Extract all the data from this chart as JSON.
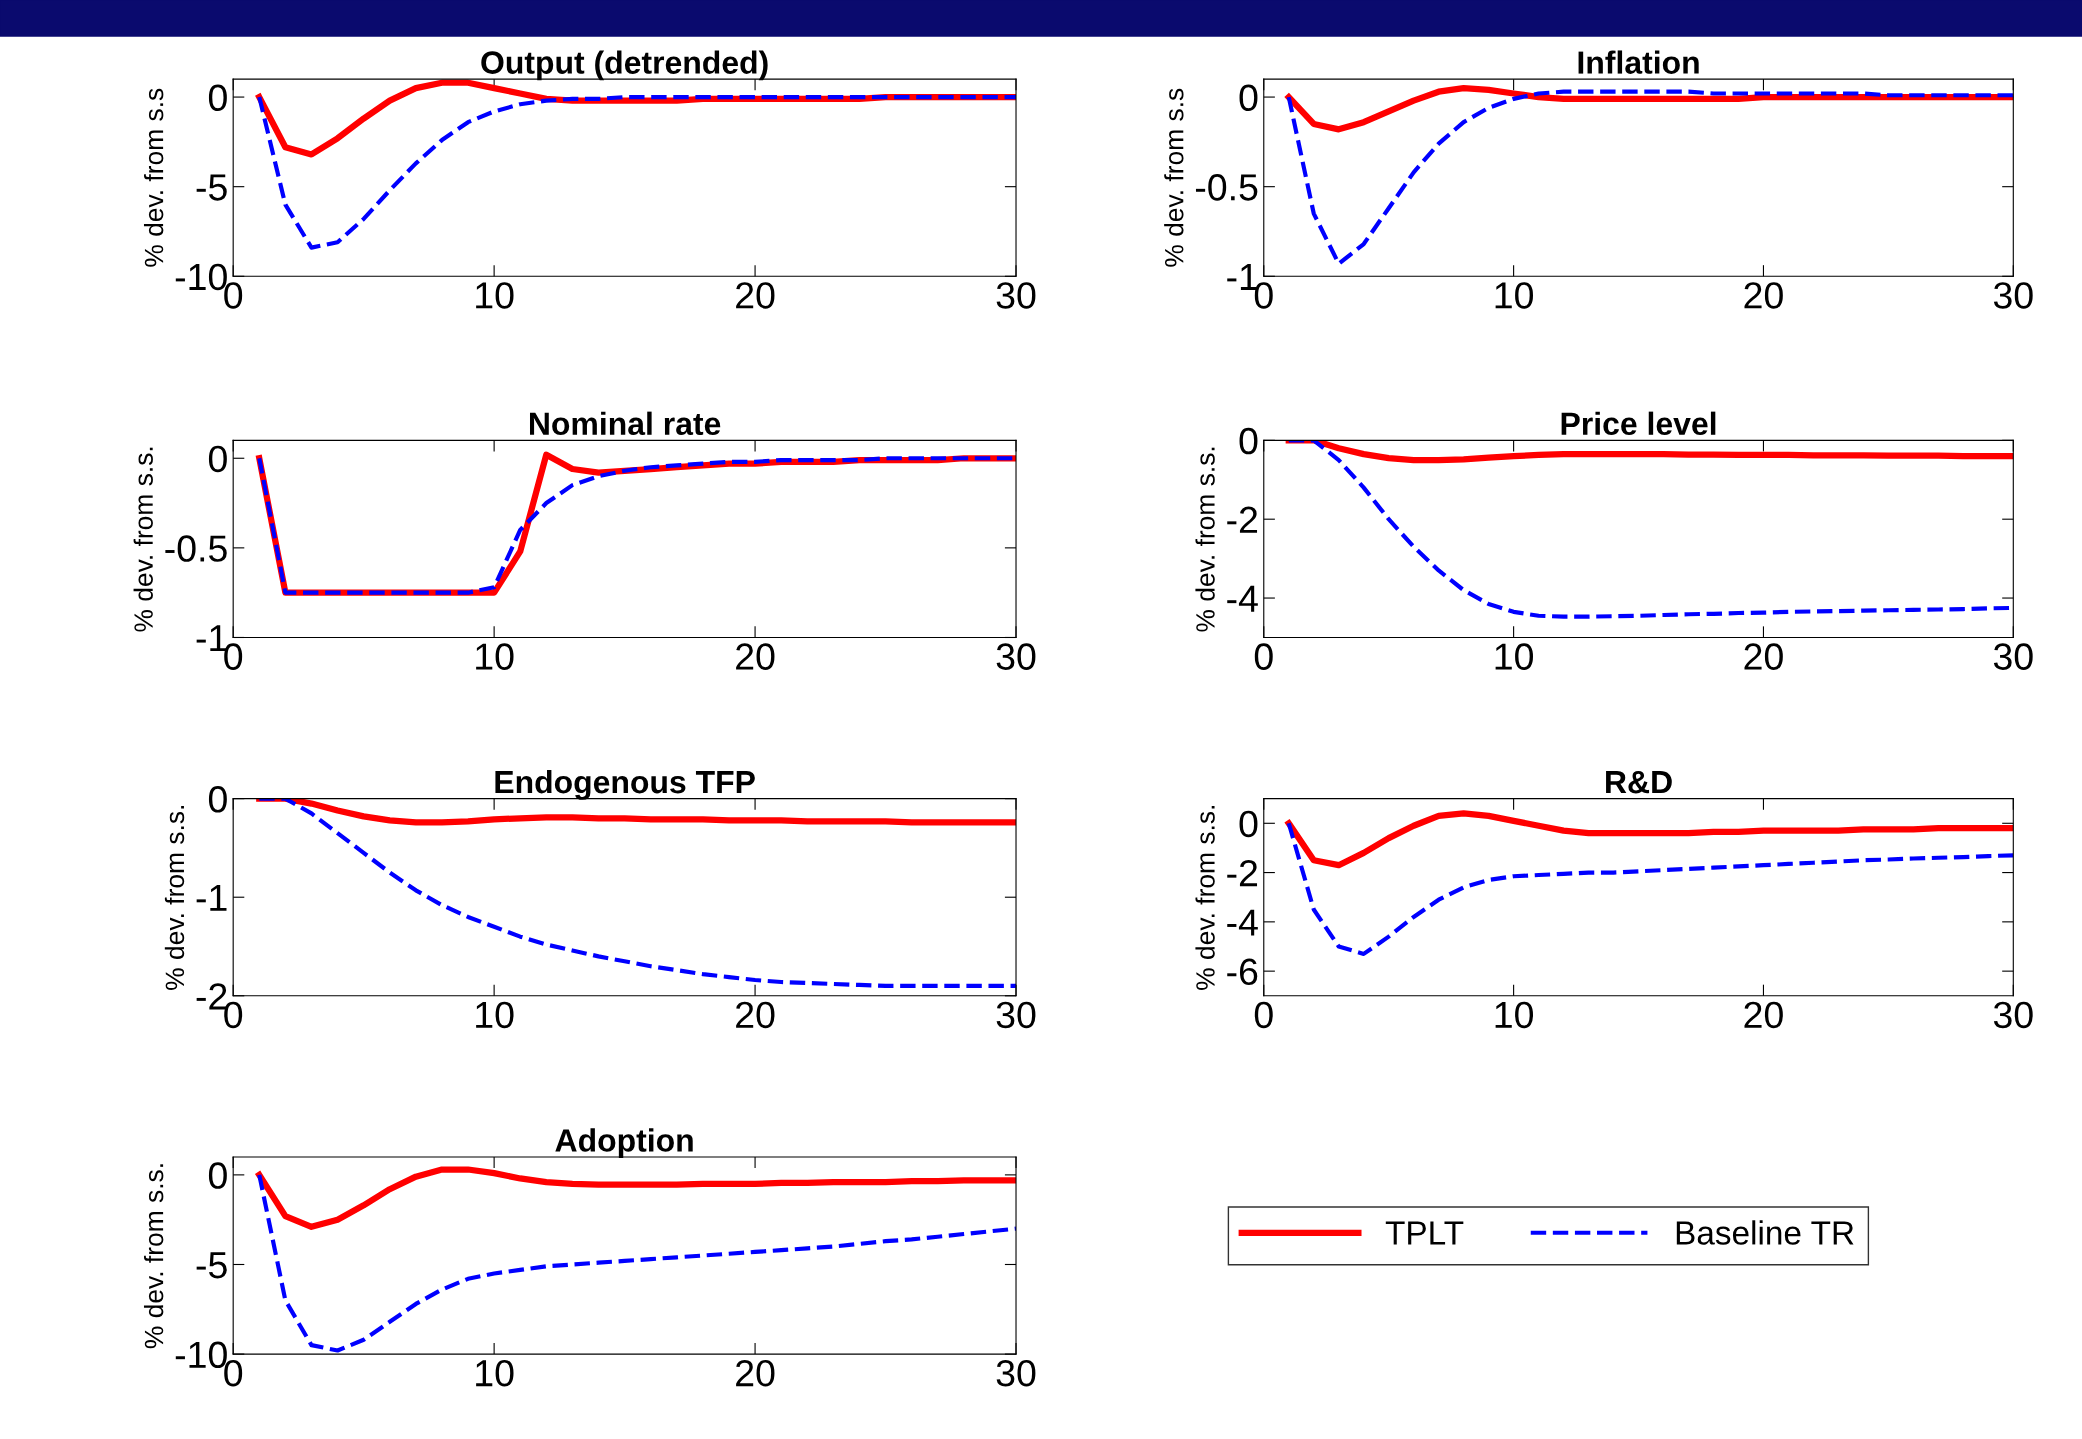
{
  "chart_data": [
    {
      "type": "line",
      "title": "Output (detrended)",
      "ylabel": "% dev. from s.s",
      "xlim": [
        0,
        30
      ],
      "xticks": [
        0,
        10,
        20,
        30
      ],
      "ylim": [
        -10,
        1
      ],
      "yticks": [
        -10,
        -5,
        0
      ],
      "x": [
        1,
        2,
        3,
        4,
        5,
        6,
        7,
        8,
        9,
        10,
        11,
        12,
        13,
        14,
        15,
        16,
        17,
        18,
        19,
        20,
        21,
        22,
        23,
        24,
        25,
        26,
        27,
        28,
        29,
        30
      ],
      "series": [
        {
          "color": "#ff0000",
          "line_style": "solid",
          "values": [
            0,
            -2.8,
            -3.2,
            -2.3,
            -1.2,
            -0.2,
            0.5,
            0.8,
            0.8,
            0.5,
            0.2,
            -0.1,
            -0.2,
            -0.2,
            -0.2,
            -0.2,
            -0.2,
            -0.1,
            -0.1,
            -0.1,
            -0.1,
            -0.1,
            -0.1,
            -0.1,
            0,
            0,
            0,
            0,
            0,
            0
          ]
        },
        {
          "color": "#0000ff",
          "line_style": "dashed",
          "values": [
            0,
            -6,
            -8.4,
            -8.1,
            -6.8,
            -5.2,
            -3.7,
            -2.4,
            -1.4,
            -0.8,
            -0.4,
            -0.2,
            -0.1,
            -0.1,
            0,
            0,
            0,
            0,
            0,
            0,
            0,
            0,
            0,
            0,
            0,
            0,
            0,
            0,
            0,
            0
          ]
        }
      ]
    },
    {
      "type": "line",
      "title": "Inflation",
      "ylabel": "% dev. from s.s",
      "xlim": [
        0,
        30
      ],
      "xticks": [
        0,
        10,
        20,
        30
      ],
      "ylim": [
        -1,
        0.1
      ],
      "yticks": [
        -1,
        -0.5,
        0
      ],
      "x": [
        1,
        2,
        3,
        4,
        5,
        6,
        7,
        8,
        9,
        10,
        11,
        12,
        13,
        14,
        15,
        16,
        17,
        18,
        19,
        20,
        21,
        22,
        23,
        24,
        25,
        26,
        27,
        28,
        29,
        30
      ],
      "series": [
        {
          "color": "#ff0000",
          "line_style": "solid",
          "values": [
            0,
            -0.15,
            -0.18,
            -0.14,
            -0.08,
            -0.02,
            0.03,
            0.05,
            0.04,
            0.02,
            0,
            -0.01,
            -0.01,
            -0.01,
            -0.01,
            -0.01,
            -0.01,
            -0.01,
            -0.01,
            0,
            0,
            0,
            0,
            0,
            0,
            0,
            0,
            0,
            0,
            0
          ]
        },
        {
          "color": "#0000ff",
          "line_style": "dashed",
          "values": [
            0,
            -0.65,
            -0.93,
            -0.82,
            -0.62,
            -0.42,
            -0.26,
            -0.14,
            -0.06,
            -0.01,
            0.02,
            0.03,
            0.03,
            0.03,
            0.03,
            0.03,
            0.03,
            0.02,
            0.02,
            0.02,
            0.02,
            0.02,
            0.02,
            0.02,
            0.01,
            0.01,
            0.01,
            0.01,
            0.01,
            0.01
          ]
        }
      ]
    },
    {
      "type": "line",
      "title": "Nominal rate",
      "ylabel": "% dev. from s.s.",
      "xlim": [
        0,
        30
      ],
      "xticks": [
        0,
        10,
        20,
        30
      ],
      "ylim": [
        -1,
        0.1
      ],
      "yticks": [
        -1,
        -0.5,
        0
      ],
      "x": [
        1,
        2,
        3,
        4,
        5,
        6,
        7,
        8,
        9,
        10,
        11,
        12,
        13,
        14,
        15,
        16,
        17,
        18,
        19,
        20,
        21,
        22,
        23,
        24,
        25,
        26,
        27,
        28,
        29,
        30
      ],
      "series": [
        {
          "color": "#ff0000",
          "line_style": "solid",
          "values": [
            0,
            -0.75,
            -0.75,
            -0.75,
            -0.75,
            -0.75,
            -0.75,
            -0.75,
            -0.75,
            -0.75,
            -0.52,
            0.02,
            -0.06,
            -0.08,
            -0.07,
            -0.06,
            -0.05,
            -0.04,
            -0.03,
            -0.03,
            -0.02,
            -0.02,
            -0.02,
            -0.01,
            -0.01,
            -0.01,
            -0.01,
            0,
            0,
            0
          ]
        },
        {
          "color": "#0000ff",
          "line_style": "dashed",
          "values": [
            0,
            -0.75,
            -0.75,
            -0.75,
            -0.75,
            -0.75,
            -0.75,
            -0.75,
            -0.75,
            -0.72,
            -0.4,
            -0.25,
            -0.15,
            -0.1,
            -0.07,
            -0.05,
            -0.04,
            -0.03,
            -0.02,
            -0.02,
            -0.01,
            -0.01,
            -0.01,
            -0.01,
            0,
            0,
            0,
            0,
            0,
            0
          ]
        }
      ]
    },
    {
      "type": "line",
      "title": "Price level",
      "ylabel": "% dev. from s.s.",
      "xlim": [
        0,
        30
      ],
      "xticks": [
        0,
        10,
        20,
        30
      ],
      "ylim": [
        -5,
        0
      ],
      "yticks": [
        -4,
        -2,
        0
      ],
      "x": [
        1,
        2,
        3,
        4,
        5,
        6,
        7,
        8,
        9,
        10,
        11,
        12,
        13,
        14,
        15,
        16,
        17,
        18,
        19,
        20,
        21,
        22,
        23,
        24,
        25,
        26,
        27,
        28,
        29,
        30
      ],
      "series": [
        {
          "color": "#ff0000",
          "line_style": "solid",
          "values": [
            0,
            0,
            -0.2,
            -0.35,
            -0.45,
            -0.5,
            -0.5,
            -0.48,
            -0.44,
            -0.4,
            -0.37,
            -0.35,
            -0.35,
            -0.35,
            -0.35,
            -0.35,
            -0.36,
            -0.36,
            -0.37,
            -0.37,
            -0.37,
            -0.38,
            -0.38,
            -0.38,
            -0.39,
            -0.39,
            -0.39,
            -0.4,
            -0.4,
            -0.4
          ]
        },
        {
          "color": "#0000ff",
          "line_style": "dashed",
          "values": [
            0,
            0,
            -0.5,
            -1.2,
            -2.0,
            -2.7,
            -3.3,
            -3.8,
            -4.15,
            -4.35,
            -4.45,
            -4.47,
            -4.47,
            -4.46,
            -4.45,
            -4.43,
            -4.41,
            -4.4,
            -4.38,
            -4.37,
            -4.35,
            -4.34,
            -4.33,
            -4.32,
            -4.31,
            -4.3,
            -4.29,
            -4.28,
            -4.26,
            -4.25
          ]
        }
      ]
    },
    {
      "type": "line",
      "title": "Endogenous TFP",
      "ylabel": "% dev. from s.s.",
      "xlim": [
        0,
        30
      ],
      "xticks": [
        0,
        10,
        20,
        30
      ],
      "ylim": [
        -2,
        0
      ],
      "yticks": [
        -2,
        -1,
        0
      ],
      "x": [
        1,
        2,
        3,
        4,
        5,
        6,
        7,
        8,
        9,
        10,
        11,
        12,
        13,
        14,
        15,
        16,
        17,
        18,
        19,
        20,
        21,
        22,
        23,
        24,
        25,
        26,
        27,
        28,
        29,
        30
      ],
      "series": [
        {
          "color": "#ff0000",
          "line_style": "solid",
          "values": [
            0,
            0,
            -0.05,
            -0.12,
            -0.18,
            -0.22,
            -0.24,
            -0.24,
            -0.23,
            -0.21,
            -0.2,
            -0.19,
            -0.19,
            -0.2,
            -0.2,
            -0.21,
            -0.21,
            -0.21,
            -0.22,
            -0.22,
            -0.22,
            -0.23,
            -0.23,
            -0.23,
            -0.23,
            -0.24,
            -0.24,
            -0.24,
            -0.24,
            -0.24
          ]
        },
        {
          "color": "#0000ff",
          "line_style": "dashed",
          "values": [
            0,
            0,
            -0.15,
            -0.35,
            -0.55,
            -0.75,
            -0.93,
            -1.08,
            -1.2,
            -1.3,
            -1.4,
            -1.48,
            -1.54,
            -1.6,
            -1.65,
            -1.7,
            -1.74,
            -1.78,
            -1.81,
            -1.84,
            -1.86,
            -1.87,
            -1.88,
            -1.89,
            -1.9,
            -1.9,
            -1.9,
            -1.9,
            -1.9,
            -1.9
          ]
        }
      ]
    },
    {
      "type": "line",
      "title": "R&D",
      "ylabel": "% dev. from s.s.",
      "xlim": [
        0,
        30
      ],
      "xticks": [
        0,
        10,
        20,
        30
      ],
      "ylim": [
        -7,
        1
      ],
      "yticks": [
        -6,
        -4,
        -2,
        0
      ],
      "x": [
        1,
        2,
        3,
        4,
        5,
        6,
        7,
        8,
        9,
        10,
        11,
        12,
        13,
        14,
        15,
        16,
        17,
        18,
        19,
        20,
        21,
        22,
        23,
        24,
        25,
        26,
        27,
        28,
        29,
        30
      ],
      "series": [
        {
          "color": "#ff0000",
          "line_style": "solid",
          "values": [
            0,
            -1.5,
            -1.7,
            -1.2,
            -0.6,
            -0.1,
            0.3,
            0.4,
            0.3,
            0.1,
            -0.1,
            -0.3,
            -0.4,
            -0.4,
            -0.4,
            -0.4,
            -0.4,
            -0.35,
            -0.35,
            -0.3,
            -0.3,
            -0.3,
            -0.3,
            -0.25,
            -0.25,
            -0.25,
            -0.2,
            -0.2,
            -0.2,
            -0.2
          ]
        },
        {
          "color": "#0000ff",
          "line_style": "dashed",
          "values": [
            0,
            -3.5,
            -5,
            -5.3,
            -4.6,
            -3.8,
            -3.1,
            -2.6,
            -2.3,
            -2.15,
            -2.1,
            -2.05,
            -2.0,
            -2.0,
            -1.95,
            -1.9,
            -1.85,
            -1.8,
            -1.75,
            -1.7,
            -1.65,
            -1.6,
            -1.55,
            -1.5,
            -1.47,
            -1.43,
            -1.4,
            -1.37,
            -1.33,
            -1.3
          ]
        }
      ]
    },
    {
      "type": "line",
      "title": "Adoption",
      "ylabel": "% dev. from s.s.",
      "xlim": [
        0,
        30
      ],
      "xticks": [
        0,
        10,
        20,
        30
      ],
      "ylim": [
        -10,
        1
      ],
      "yticks": [
        -10,
        -5,
        0
      ],
      "legend": "right",
      "x": [
        1,
        2,
        3,
        4,
        5,
        6,
        7,
        8,
        9,
        10,
        11,
        12,
        13,
        14,
        15,
        16,
        17,
        18,
        19,
        20,
        21,
        22,
        23,
        24,
        25,
        26,
        27,
        28,
        29,
        30
      ],
      "series": [
        {
          "name": "TPLT",
          "color": "#ff0000",
          "line_style": "solid",
          "values": [
            0,
            -2.3,
            -2.9,
            -2.5,
            -1.7,
            -0.8,
            -0.1,
            0.3,
            0.3,
            0.1,
            -0.2,
            -0.4,
            -0.5,
            -0.55,
            -0.55,
            -0.55,
            -0.55,
            -0.5,
            -0.5,
            -0.5,
            -0.45,
            -0.45,
            -0.4,
            -0.4,
            -0.4,
            -0.35,
            -0.35,
            -0.3,
            -0.3,
            -0.3
          ]
        },
        {
          "name": "Baseline TR",
          "color": "#0000ff",
          "line_style": "dashed",
          "values": [
            0,
            -7,
            -9.5,
            -9.8,
            -9.2,
            -8.2,
            -7.2,
            -6.4,
            -5.8,
            -5.5,
            -5.3,
            -5.1,
            -5.0,
            -4.9,
            -4.8,
            -4.7,
            -4.6,
            -4.5,
            -4.4,
            -4.3,
            -4.2,
            -4.1,
            -4.0,
            -3.85,
            -3.7,
            -3.6,
            -3.45,
            -3.3,
            -3.15,
            -3.0
          ]
        }
      ]
    }
  ]
}
